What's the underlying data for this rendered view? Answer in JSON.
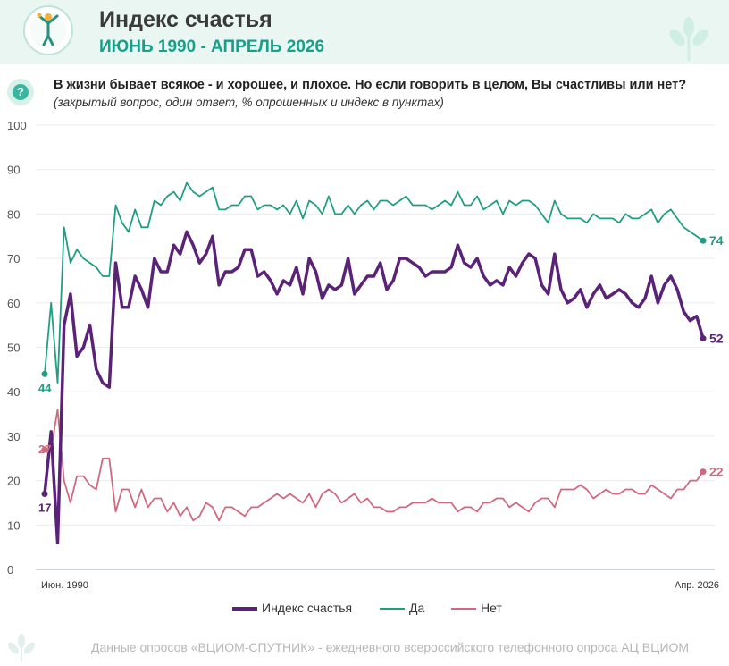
{
  "header": {
    "title": "Индекс счастья",
    "subtitle": "ИЮНЬ 1990 - АПРЕЛЬ 2026"
  },
  "question": {
    "text": "В жизни бывает всякое - и хорошее, и плохое. Но если говорить в целом, Вы счастливы  или нет?",
    "note": "(закрытый вопрос, один ответ, % опрошенных и индекс в пунктах)"
  },
  "footer": "Данные опросов «ВЦИОМ-СПУТНИК» - ежедневного всероссийского телефонного опроса АЦ ВЦИОМ",
  "colors": {
    "index": "#5b2378",
    "yes": "#1f9e84",
    "no": "#d0697f"
  },
  "chart_data": {
    "type": "line",
    "title": "Индекс счастья",
    "x_range": [
      "Июн. 1990",
      "Апр. 2026"
    ],
    "x_tick_labels": [
      "Июн. 1990",
      "Апр. 2026"
    ],
    "ylim": [
      0,
      100
    ],
    "y_ticks": [
      "0",
      "10",
      "20",
      "30",
      "40",
      "50",
      "60",
      "70",
      "80",
      "90",
      "100"
    ],
    "grid": true,
    "legend_position": "bottom",
    "series": [
      {
        "name": "Индекс счастья",
        "color": "#5b2378",
        "values": [
          17,
          31,
          6,
          55,
          62,
          48,
          50,
          55,
          45,
          42,
          41,
          69,
          59,
          59,
          66,
          63,
          59,
          70,
          67,
          67,
          73,
          71,
          76,
          73,
          69,
          71,
          75,
          64,
          67,
          67,
          68,
          72,
          72,
          66,
          67,
          65,
          62,
          65,
          64,
          68,
          62,
          70,
          67,
          61,
          64,
          63,
          64,
          70,
          62,
          64,
          66,
          66,
          69,
          63,
          65,
          70,
          70,
          69,
          68,
          66,
          67,
          67,
          67,
          68,
          73,
          69,
          68,
          70,
          66,
          64,
          65,
          64,
          68,
          66,
          69,
          71,
          70,
          64,
          62,
          71,
          63,
          60,
          61,
          63,
          59,
          62,
          64,
          61,
          62,
          63,
          62,
          60,
          59,
          61,
          66,
          60,
          64,
          66,
          63,
          58,
          56,
          57,
          52
        ],
        "start_label": "17",
        "end_label": "52"
      },
      {
        "name": "Да",
        "color": "#1f9e84",
        "values": [
          44,
          60,
          42,
          77,
          69,
          72,
          70,
          69,
          68,
          66,
          66,
          82,
          78,
          76,
          81,
          77,
          77,
          83,
          82,
          84,
          85,
          83,
          87,
          85,
          84,
          85,
          86,
          81,
          81,
          82,
          82,
          84,
          84,
          81,
          82,
          82,
          81,
          82,
          80,
          83,
          79,
          83,
          82,
          80,
          84,
          80,
          80,
          82,
          80,
          82,
          83,
          81,
          83,
          83,
          82,
          83,
          84,
          82,
          82,
          82,
          81,
          82,
          83,
          82,
          85,
          82,
          82,
          84,
          81,
          82,
          83,
          80,
          83,
          82,
          83,
          83,
          82,
          80,
          78,
          83,
          80,
          79,
          79,
          79,
          78,
          80,
          79,
          79,
          79,
          78,
          80,
          79,
          79,
          80,
          81,
          78,
          80,
          81,
          79,
          77,
          76,
          75,
          74
        ],
        "start_label": "44",
        "end_label": "74"
      },
      {
        "name": "Нет",
        "color": "#d0697f",
        "values": [
          27,
          27,
          36,
          20,
          15,
          21,
          21,
          19,
          18,
          25,
          25,
          13,
          18,
          18,
          14,
          18,
          14,
          16,
          16,
          13,
          15,
          12,
          14,
          11,
          12,
          15,
          14,
          11,
          14,
          14,
          13,
          12,
          14,
          14,
          15,
          16,
          17,
          16,
          17,
          16,
          15,
          17,
          14,
          17,
          18,
          17,
          15,
          16,
          17,
          15,
          16,
          14,
          14,
          13,
          13,
          14,
          14,
          15,
          15,
          15,
          16,
          15,
          15,
          15,
          13,
          14,
          14,
          13,
          15,
          15,
          16,
          16,
          14,
          15,
          14,
          13,
          15,
          16,
          16,
          14,
          18,
          18,
          18,
          19,
          18,
          16,
          17,
          18,
          17,
          17,
          18,
          18,
          17,
          17,
          19,
          18,
          17,
          16,
          18,
          18,
          20,
          20,
          22
        ],
        "start_label": "27",
        "end_label": "22"
      }
    ]
  }
}
